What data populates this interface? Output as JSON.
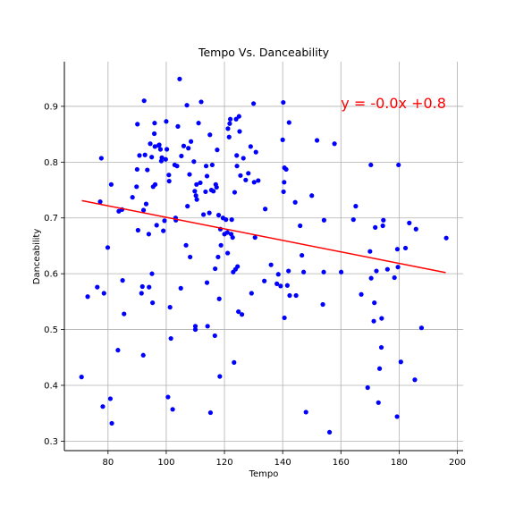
{
  "chart_data": {
    "type": "scatter",
    "title": "Tempo Vs. Danceability",
    "xlabel": "Tempo",
    "ylabel": "Danceability",
    "xlim": [
      65,
      202
    ],
    "ylim": [
      0.283,
      0.98
    ],
    "xticks": [
      80,
      100,
      120,
      140,
      160,
      180,
      200
    ],
    "yticks": [
      0.3,
      0.4,
      0.5,
      0.6,
      0.7,
      0.8,
      0.9
    ],
    "xtick_labels": [
      "80",
      "100",
      "120",
      "140",
      "160",
      "180",
      "200"
    ],
    "ytick_labels": [
      "0.3",
      "0.4",
      "0.5",
      "0.6",
      "0.7",
      "0.8",
      "0.9"
    ],
    "grid": true,
    "annotation": {
      "text": "y = -0.0x +0.8",
      "x": 160,
      "y": 0.9,
      "color": "#ff0000"
    },
    "regression_line": {
      "x": [
        71,
        196
      ],
      "y": [
        0.731,
        0.602
      ],
      "color": "#ff0000"
    },
    "point_color": "#0000ff",
    "points": [
      [
        70.9,
        0.415
      ],
      [
        73.0,
        0.559
      ],
      [
        76.3,
        0.576
      ],
      [
        77.3,
        0.729
      ],
      [
        77.7,
        0.807
      ],
      [
        78.6,
        0.565
      ],
      [
        78.2,
        0.362
      ],
      [
        79.9,
        0.647
      ],
      [
        80.8,
        0.376
      ],
      [
        81.1,
        0.76
      ],
      [
        81.3,
        0.332
      ],
      [
        83.4,
        0.463
      ],
      [
        83.7,
        0.712
      ],
      [
        84.8,
        0.715
      ],
      [
        85.0,
        0.588
      ],
      [
        85.5,
        0.528
      ],
      [
        88.4,
        0.737
      ],
      [
        89.8,
        0.756
      ],
      [
        90.0,
        0.787
      ],
      [
        90.1,
        0.868
      ],
      [
        90.3,
        0.678
      ],
      [
        90.8,
        0.812
      ],
      [
        91.5,
        0.565
      ],
      [
        91.8,
        0.577
      ],
      [
        92.1,
        0.454
      ],
      [
        92.2,
        0.714
      ],
      [
        92.4,
        0.91
      ],
      [
        92.7,
        0.813
      ],
      [
        93.1,
        0.725
      ],
      [
        93.5,
        0.786
      ],
      [
        94.0,
        0.671
      ],
      [
        94.1,
        0.576
      ],
      [
        94.5,
        0.833
      ],
      [
        95.0,
        0.809
      ],
      [
        95.1,
        0.6
      ],
      [
        95.3,
        0.548
      ],
      [
        95.5,
        0.756
      ],
      [
        95.9,
        0.851
      ],
      [
        96.0,
        0.87
      ],
      [
        96.1,
        0.828
      ],
      [
        96.2,
        0.76
      ],
      [
        96.7,
        0.687
      ],
      [
        97.4,
        0.83
      ],
      [
        97.6,
        0.831
      ],
      [
        98.0,
        0.823
      ],
      [
        98.3,
        0.802
      ],
      [
        98.5,
        0.808
      ],
      [
        99.0,
        0.677
      ],
      [
        99.4,
        0.695
      ],
      [
        99.8,
        0.805
      ],
      [
        100.0,
        0.873
      ],
      [
        100.2,
        0.823
      ],
      [
        100.6,
        0.379
      ],
      [
        100.9,
        0.777
      ],
      [
        101.0,
        0.766
      ],
      [
        101.3,
        0.54
      ],
      [
        101.6,
        0.484
      ],
      [
        102.2,
        0.357
      ],
      [
        102.9,
        0.795
      ],
      [
        103.2,
        0.7
      ],
      [
        103.3,
        0.696
      ],
      [
        103.7,
        0.793
      ],
      [
        104.0,
        0.864
      ],
      [
        104.6,
        0.949
      ],
      [
        105.0,
        0.574
      ],
      [
        105.2,
        0.811
      ],
      [
        106.0,
        0.829
      ],
      [
        106.8,
        0.651
      ],
      [
        107.1,
        0.902
      ],
      [
        107.3,
        0.721
      ],
      [
        107.6,
        0.825
      ],
      [
        108.0,
        0.778
      ],
      [
        108.2,
        0.63
      ],
      [
        108.5,
        0.837
      ],
      [
        109.5,
        0.801
      ],
      [
        109.8,
        0.748
      ],
      [
        110.0,
        0.5
      ],
      [
        110.0,
        0.506
      ],
      [
        110.2,
        0.74
      ],
      [
        110.4,
        0.76
      ],
      [
        110.5,
        0.733
      ],
      [
        111.1,
        0.87
      ],
      [
        111.7,
        0.763
      ],
      [
        112.0,
        0.908
      ],
      [
        112.8,
        0.706
      ],
      [
        113.5,
        0.747
      ],
      [
        113.7,
        0.793
      ],
      [
        114.0,
        0.584
      ],
      [
        114.0,
        0.775
      ],
      [
        114.2,
        0.506
      ],
      [
        114.8,
        0.709
      ],
      [
        115.0,
        0.849
      ],
      [
        115.2,
        0.351
      ],
      [
        115.5,
        0.75
      ],
      [
        115.8,
        0.795
      ],
      [
        116.2,
        0.748
      ],
      [
        116.7,
        0.489
      ],
      [
        116.8,
        0.609
      ],
      [
        117.0,
        0.76
      ],
      [
        117.3,
        0.755
      ],
      [
        117.5,
        0.822
      ],
      [
        117.8,
        0.63
      ],
      [
        118.0,
        0.705
      ],
      [
        118.2,
        0.555
      ],
      [
        118.4,
        0.416
      ],
      [
        118.6,
        0.68
      ],
      [
        118.8,
        0.651
      ],
      [
        119.5,
        0.7
      ],
      [
        120.0,
        0.671
      ],
      [
        120.5,
        0.697
      ],
      [
        121.0,
        0.674
      ],
      [
        121.1,
        0.637
      ],
      [
        121.2,
        0.86
      ],
      [
        121.6,
        0.845
      ],
      [
        121.8,
        0.869
      ],
      [
        122.0,
        0.877
      ],
      [
        122.3,
        0.671
      ],
      [
        122.5,
        0.697
      ],
      [
        122.8,
        0.665
      ],
      [
        123.0,
        0.603
      ],
      [
        123.3,
        0.441
      ],
      [
        123.5,
        0.746
      ],
      [
        123.8,
        0.608
      ],
      [
        124.0,
        0.877
      ],
      [
        124.2,
        0.812
      ],
      [
        124.3,
        0.793
      ],
      [
        124.5,
        0.613
      ],
      [
        124.8,
        0.532
      ],
      [
        125.0,
        0.882
      ],
      [
        125.2,
        0.855
      ],
      [
        125.5,
        0.776
      ],
      [
        126.0,
        0.527
      ],
      [
        126.5,
        0.807
      ],
      [
        127.3,
        0.768
      ],
      [
        128.2,
        0.78
      ],
      [
        129.0,
        0.828
      ],
      [
        129.3,
        0.565
      ],
      [
        130.0,
        0.905
      ],
      [
        130.2,
        0.764
      ],
      [
        130.5,
        0.665
      ],
      [
        130.8,
        0.818
      ],
      [
        131.6,
        0.767
      ],
      [
        133.7,
        0.587
      ],
      [
        134.0,
        0.716
      ],
      [
        136.0,
        0.616
      ],
      [
        138.0,
        0.582
      ],
      [
        138.5,
        0.599
      ],
      [
        139.3,
        0.578
      ],
      [
        140.0,
        0.84
      ],
      [
        140.2,
        0.907
      ],
      [
        140.3,
        0.747
      ],
      [
        140.5,
        0.764
      ],
      [
        140.6,
        0.79
      ],
      [
        140.6,
        0.521
      ],
      [
        141.2,
        0.787
      ],
      [
        141.6,
        0.579
      ],
      [
        142.0,
        0.605
      ],
      [
        142.2,
        0.871
      ],
      [
        142.4,
        0.561
      ],
      [
        144.3,
        0.728
      ],
      [
        144.6,
        0.561
      ],
      [
        146.0,
        0.686
      ],
      [
        146.6,
        0.633
      ],
      [
        147.2,
        0.603
      ],
      [
        148.0,
        0.352
      ],
      [
        150.0,
        0.74
      ],
      [
        151.8,
        0.839
      ],
      [
        153.8,
        0.545
      ],
      [
        154.1,
        0.603
      ],
      [
        154.2,
        0.696
      ],
      [
        156.1,
        0.316
      ],
      [
        157.8,
        0.833
      ],
      [
        160.1,
        0.603
      ],
      [
        164.3,
        0.697
      ],
      [
        165.1,
        0.721
      ],
      [
        167.0,
        0.563
      ],
      [
        169.2,
        0.396
      ],
      [
        170.0,
        0.64
      ],
      [
        170.3,
        0.795
      ],
      [
        170.4,
        0.592
      ],
      [
        171.3,
        0.515
      ],
      [
        171.5,
        0.548
      ],
      [
        171.8,
        0.683
      ],
      [
        172.2,
        0.605
      ],
      [
        172.9,
        0.369
      ],
      [
        173.3,
        0.43
      ],
      [
        173.9,
        0.468
      ],
      [
        174.0,
        0.52
      ],
      [
        174.4,
        0.686
      ],
      [
        174.6,
        0.696
      ],
      [
        176.0,
        0.608
      ],
      [
        178.4,
        0.593
      ],
      [
        179.3,
        0.344
      ],
      [
        179.4,
        0.644
      ],
      [
        179.6,
        0.612
      ],
      [
        179.8,
        0.795
      ],
      [
        180.6,
        0.442
      ],
      [
        182.2,
        0.646
      ],
      [
        183.5,
        0.691
      ],
      [
        185.4,
        0.41
      ],
      [
        185.8,
        0.68
      ],
      [
        187.7,
        0.503
      ],
      [
        196.2,
        0.664
      ]
    ]
  }
}
